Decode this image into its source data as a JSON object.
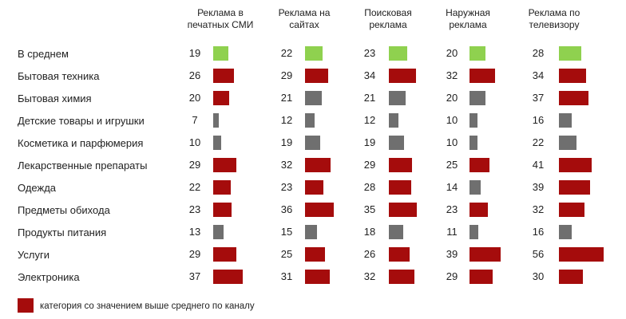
{
  "chart_data": {
    "type": "table",
    "columns": [
      {
        "line1": "Реклама в",
        "line2": "печатных СМИ"
      },
      {
        "line1": "Реклама на",
        "line2": "сайтах"
      },
      {
        "line1": "Поисковая",
        "line2": "реклама"
      },
      {
        "line1": "Наружная",
        "line2": "реклама"
      },
      {
        "line1": "Реклама по",
        "line2": "телевизору"
      }
    ],
    "categories": [
      "В среднем",
      "Бытовая техника",
      "Бытовая химия",
      "Детские товары и игрушки",
      "Косметика и парфюмерия",
      "Лекарственные препараты",
      "Одежда",
      "Предметы обихода",
      "Продукты питания",
      "Услуги",
      "Электроника"
    ],
    "values": [
      [
        19,
        22,
        23,
        20,
        28
      ],
      [
        26,
        29,
        34,
        32,
        34
      ],
      [
        20,
        21,
        21,
        20,
        37
      ],
      [
        7,
        12,
        12,
        10,
        16
      ],
      [
        10,
        19,
        19,
        10,
        22
      ],
      [
        29,
        32,
        29,
        25,
        41
      ],
      [
        22,
        23,
        28,
        14,
        39
      ],
      [
        23,
        36,
        35,
        23,
        32
      ],
      [
        13,
        15,
        18,
        11,
        16
      ],
      [
        29,
        25,
        26,
        39,
        56
      ],
      [
        37,
        31,
        32,
        29,
        30
      ]
    ],
    "colors": {
      "average": "#8fd14f",
      "above_average": "#a50c0c",
      "other": "#6f6f6f"
    },
    "legend": {
      "label": "категория со значением выше среднего по каналу",
      "placement": "bottom-left"
    }
  }
}
